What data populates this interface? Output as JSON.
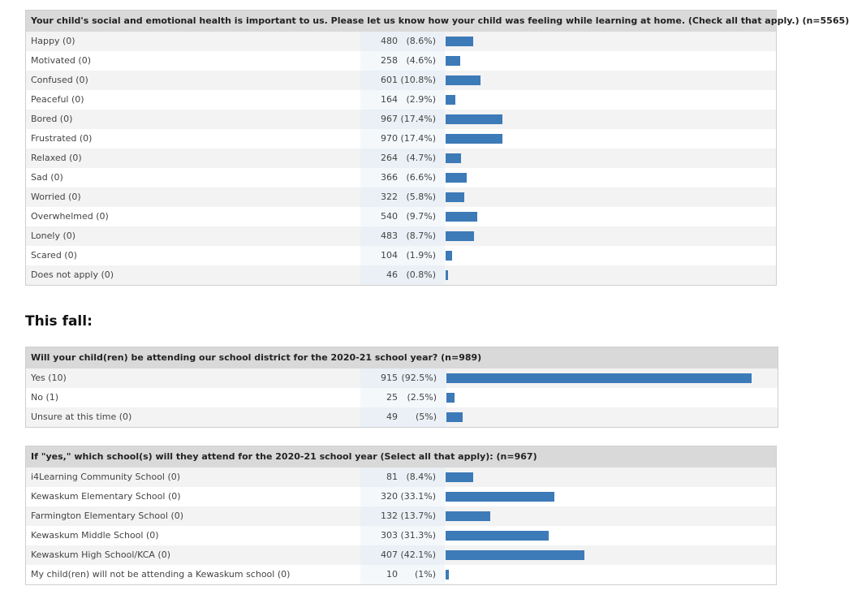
{
  "chart_data": [
    {
      "type": "bar",
      "title": "Your child's social and emotional health is important to us. Please let us know how your child was feeling while learning at home. (Check all that apply.) (n=5565)",
      "categories": [
        "Happy (0)",
        "Motivated (0)",
        "Confused (0)",
        "Peaceful (0)",
        "Bored (0)",
        "Frustrated (0)",
        "Relaxed (0)",
        "Sad (0)",
        "Worried (0)",
        "Overwhelmed (0)",
        "Lonely (0)",
        "Scared (0)",
        "Does not apply (0)"
      ],
      "values": [
        480,
        258,
        601,
        164,
        967,
        970,
        264,
        366,
        322,
        540,
        483,
        104,
        46
      ],
      "percents": [
        "(8.6%)",
        "(4.6%)",
        "(10.8%)",
        "(2.9%)",
        "(17.4%)",
        "(17.4%)",
        "(4.7%)",
        "(6.6%)",
        "(5.8%)",
        "(9.7%)",
        "(8.7%)",
        "(1.9%)",
        "(0.8%)"
      ],
      "share": [
        8.6,
        4.6,
        10.8,
        2.9,
        17.4,
        17.4,
        4.7,
        6.6,
        5.8,
        9.7,
        8.7,
        1.9,
        0.8
      ],
      "bar_color": "#3d7ab8"
    },
    {
      "type": "bar",
      "title": "Will your child(ren) be attending our school district for the 2020-21 school year? (n=989)",
      "categories": [
        "Yes (10)",
        "No (1)",
        "Unsure at this time (0)"
      ],
      "values": [
        915,
        25,
        49
      ],
      "percents": [
        "(92.5%)",
        "(2.5%)",
        "(5%)"
      ],
      "share": [
        92.5,
        2.5,
        5
      ],
      "bar_color": "#3d7ab8"
    },
    {
      "type": "bar",
      "title": "If \"yes,\" which school(s) will they attend for the 2020-21 school year (Select all that apply): (n=967)",
      "categories": [
        "i4Learning Community School (0)",
        "Kewaskum Elementary School (0)",
        "Farmington Elementary School (0)",
        "Kewaskum Middle School (0)",
        "Kewaskum High School/KCA (0)",
        "My child(ren) will not be attending a Kewaskum school (0)"
      ],
      "values": [
        81,
        320,
        132,
        303,
        407,
        10
      ],
      "percents": [
        "(8.4%)",
        "(33.1%)",
        "(13.7%)",
        "(31.3%)",
        "(42.1%)",
        "(1%)"
      ],
      "share": [
        8.4,
        33.1,
        13.7,
        31.3,
        42.1,
        1
      ],
      "bar_color": "#3d7ab8"
    }
  ],
  "section_heading": "This fall:"
}
